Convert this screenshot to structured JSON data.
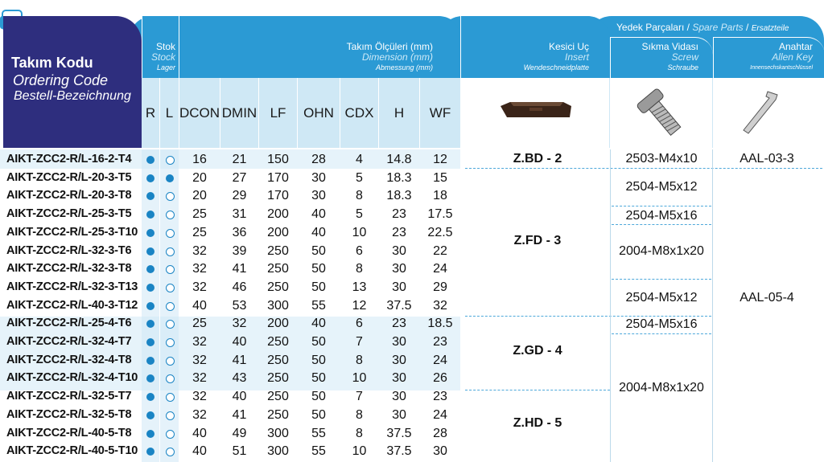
{
  "header": {
    "code_tr": "Takım Kodu",
    "code_en": "Ordering Code",
    "code_de": "Bestell-Bezeichnung",
    "stock_tr": "Stok",
    "stock_en": "Stock",
    "stock_de": "Lager",
    "dim_tr": "Takım Ölçüleri (mm)",
    "dim_en": "Dimension (mm)",
    "dim_de": "Abmessung (mm)",
    "insert_tr": "Kesici Uç",
    "insert_en": "Insert",
    "insert_de": "Wendeschneidplatte",
    "spare_tr": "Yedek Parçaları",
    "spare_sep1": "/",
    "spare_en": "Spare Parts",
    "spare_sep2": "/",
    "spare_de": "Ersatzteile",
    "screw_tr": "Sıkma Vidası",
    "screw_en": "Screw",
    "screw_de": "Schraube",
    "key_tr": "Anahtar",
    "key_en": "Allen Key",
    "key_de": "Innensechskantschlüssel"
  },
  "columns": [
    "R",
    "L",
    "DCON",
    "DMIN",
    "LF",
    "OHN",
    "CDX",
    "H",
    "WF"
  ],
  "rows": [
    {
      "code": "AIKT-ZCC2-R/L-16-2-T4",
      "r": true,
      "l": false,
      "dcon": "16",
      "dmin": "21",
      "lf": "150",
      "ohn": "28",
      "cdx": "4",
      "h": "14.8",
      "wf": "12"
    },
    {
      "code": "AIKT-ZCC2-R/L-20-3-T5",
      "r": true,
      "l": true,
      "dcon": "20",
      "dmin": "27",
      "lf": "170",
      "ohn": "30",
      "cdx": "5",
      "h": "18.3",
      "wf": "15"
    },
    {
      "code": "AIKT-ZCC2-R/L-20-3-T8",
      "r": true,
      "l": false,
      "dcon": "20",
      "dmin": "29",
      "lf": "170",
      "ohn": "30",
      "cdx": "8",
      "h": "18.3",
      "wf": "18"
    },
    {
      "code": "AIKT-ZCC2-R/L-25-3-T5",
      "r": true,
      "l": false,
      "dcon": "25",
      "dmin": "31",
      "lf": "200",
      "ohn": "40",
      "cdx": "5",
      "h": "23",
      "wf": "17.5"
    },
    {
      "code": "AIKT-ZCC2-R/L-25-3-T10",
      "r": true,
      "l": false,
      "dcon": "25",
      "dmin": "36",
      "lf": "200",
      "ohn": "40",
      "cdx": "10",
      "h": "23",
      "wf": "22.5"
    },
    {
      "code": "AIKT-ZCC2-R/L-32-3-T6",
      "r": true,
      "l": false,
      "dcon": "32",
      "dmin": "39",
      "lf": "250",
      "ohn": "50",
      "cdx": "6",
      "h": "30",
      "wf": "22"
    },
    {
      "code": "AIKT-ZCC2-R/L-32-3-T8",
      "r": true,
      "l": false,
      "dcon": "32",
      "dmin": "41",
      "lf": "250",
      "ohn": "50",
      "cdx": "8",
      "h": "30",
      "wf": "24"
    },
    {
      "code": "AIKT-ZCC2-R/L-32-3-T13",
      "r": true,
      "l": false,
      "dcon": "32",
      "dmin": "46",
      "lf": "250",
      "ohn": "50",
      "cdx": "13",
      "h": "30",
      "wf": "29"
    },
    {
      "code": "AIKT-ZCC2-R/L-40-3-T12",
      "r": true,
      "l": false,
      "dcon": "40",
      "dmin": "53",
      "lf": "300",
      "ohn": "55",
      "cdx": "12",
      "h": "37.5",
      "wf": "32"
    },
    {
      "code": "AIKT-ZCC2-R/L-25-4-T6",
      "r": true,
      "l": false,
      "dcon": "25",
      "dmin": "32",
      "lf": "200",
      "ohn": "40",
      "cdx": "6",
      "h": "23",
      "wf": "18.5"
    },
    {
      "code": "AIKT-ZCC2-R/L-32-4-T7",
      "r": true,
      "l": false,
      "dcon": "32",
      "dmin": "40",
      "lf": "250",
      "ohn": "50",
      "cdx": "7",
      "h": "30",
      "wf": "23"
    },
    {
      "code": "AIKT-ZCC2-R/L-32-4-T8",
      "r": true,
      "l": false,
      "dcon": "32",
      "dmin": "41",
      "lf": "250",
      "ohn": "50",
      "cdx": "8",
      "h": "30",
      "wf": "24"
    },
    {
      "code": "AIKT-ZCC2-R/L-32-4-T10",
      "r": true,
      "l": false,
      "dcon": "32",
      "dmin": "43",
      "lf": "250",
      "ohn": "50",
      "cdx": "10",
      "h": "30",
      "wf": "26"
    },
    {
      "code": "AIKT-ZCC2-R/L-32-5-T7",
      "r": true,
      "l": false,
      "dcon": "32",
      "dmin": "40",
      "lf": "250",
      "ohn": "50",
      "cdx": "7",
      "h": "30",
      "wf": "23"
    },
    {
      "code": "AIKT-ZCC2-R/L-32-5-T8",
      "r": true,
      "l": false,
      "dcon": "32",
      "dmin": "41",
      "lf": "250",
      "ohn": "50",
      "cdx": "8",
      "h": "30",
      "wf": "24"
    },
    {
      "code": "AIKT-ZCC2-R/L-40-5-T8",
      "r": true,
      "l": false,
      "dcon": "40",
      "dmin": "49",
      "lf": "300",
      "ohn": "55",
      "cdx": "8",
      "h": "37.5",
      "wf": "28"
    },
    {
      "code": "AIKT-ZCC2-R/L-40-5-T10",
      "r": true,
      "l": false,
      "dcon": "40",
      "dmin": "51",
      "lf": "300",
      "ohn": "55",
      "cdx": "10",
      "h": "37.5",
      "wf": "30"
    }
  ],
  "inserts": [
    "Z.BD - 2",
    "Z.FD - 3",
    "Z.GD - 4",
    "Z.HD - 5"
  ],
  "screws": [
    "2503-M4x10",
    "2504-M5x12",
    "2504-M5x16",
    "2004-M8x1x20",
    "2504-M5x12",
    "2504-M5x16",
    "2004-M8x1x20"
  ],
  "keys": [
    "AAL-03-3",
    "AAL-05-4"
  ],
  "colors": {
    "header": "#2b9ad4",
    "navy": "#2e2e7e",
    "light": "#cfe8f5",
    "band": "#e6f3fa",
    "dot": "#1a84c4"
  }
}
